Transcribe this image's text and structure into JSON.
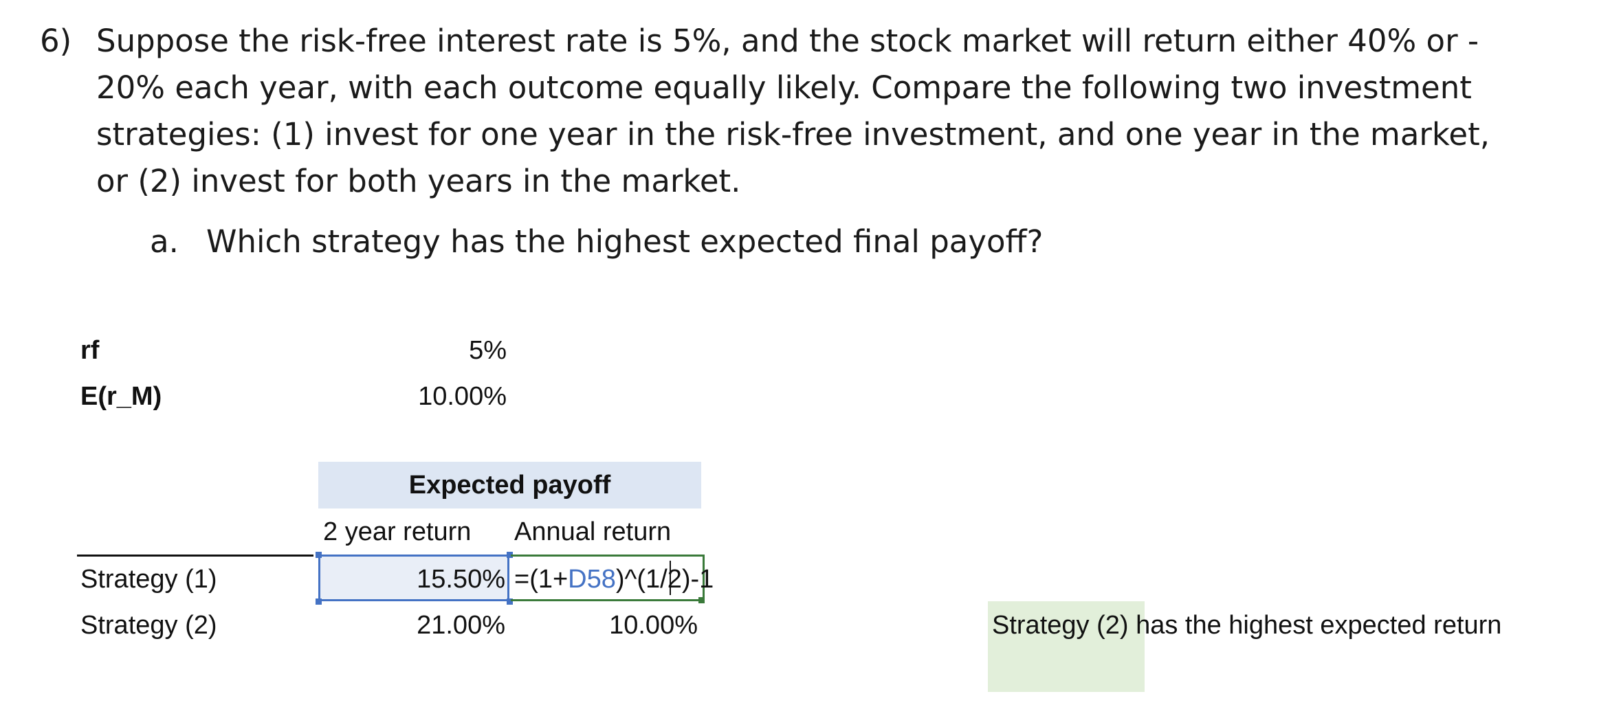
{
  "question": {
    "number": "6)",
    "lines": [
      "Suppose the risk-free interest rate is 5%, and the stock market will return either 40% or -",
      "20% each year, with each outcome equally likely. Compare the following two investment",
      "strategies: (1) invest for one year in the risk-free investment, and one year in the market,",
      "or (2) invest for both years in the market."
    ],
    "sub_letter": "a.",
    "sub_text": "Which strategy has the highest expected final payoff?"
  },
  "sheet": {
    "rf_label": "rf",
    "rf_value": "5%",
    "erm_label": "E(r_M)",
    "erm_value": "10.00%",
    "table_header": "Expected payoff",
    "col_2yr": "2 year return",
    "col_annual": "Annual return",
    "rows": [
      {
        "label": "Strategy (1)",
        "two_year": "15.50%"
      },
      {
        "label": "Strategy (2)",
        "two_year": "21.00%",
        "annual": "10.00%"
      }
    ],
    "formula": {
      "prefix": "=(1+",
      "ref": "D58",
      "suffix": ")^(1/2)-1"
    },
    "conclusion": "Strategy (2) has the highest expected return"
  },
  "colors": {
    "selection_border": "#4472c4",
    "selection_fill": "#e9eef7",
    "edit_border": "#3a7a3a",
    "header_fill": "#dde6f3",
    "note_fill": "#e2efda"
  }
}
